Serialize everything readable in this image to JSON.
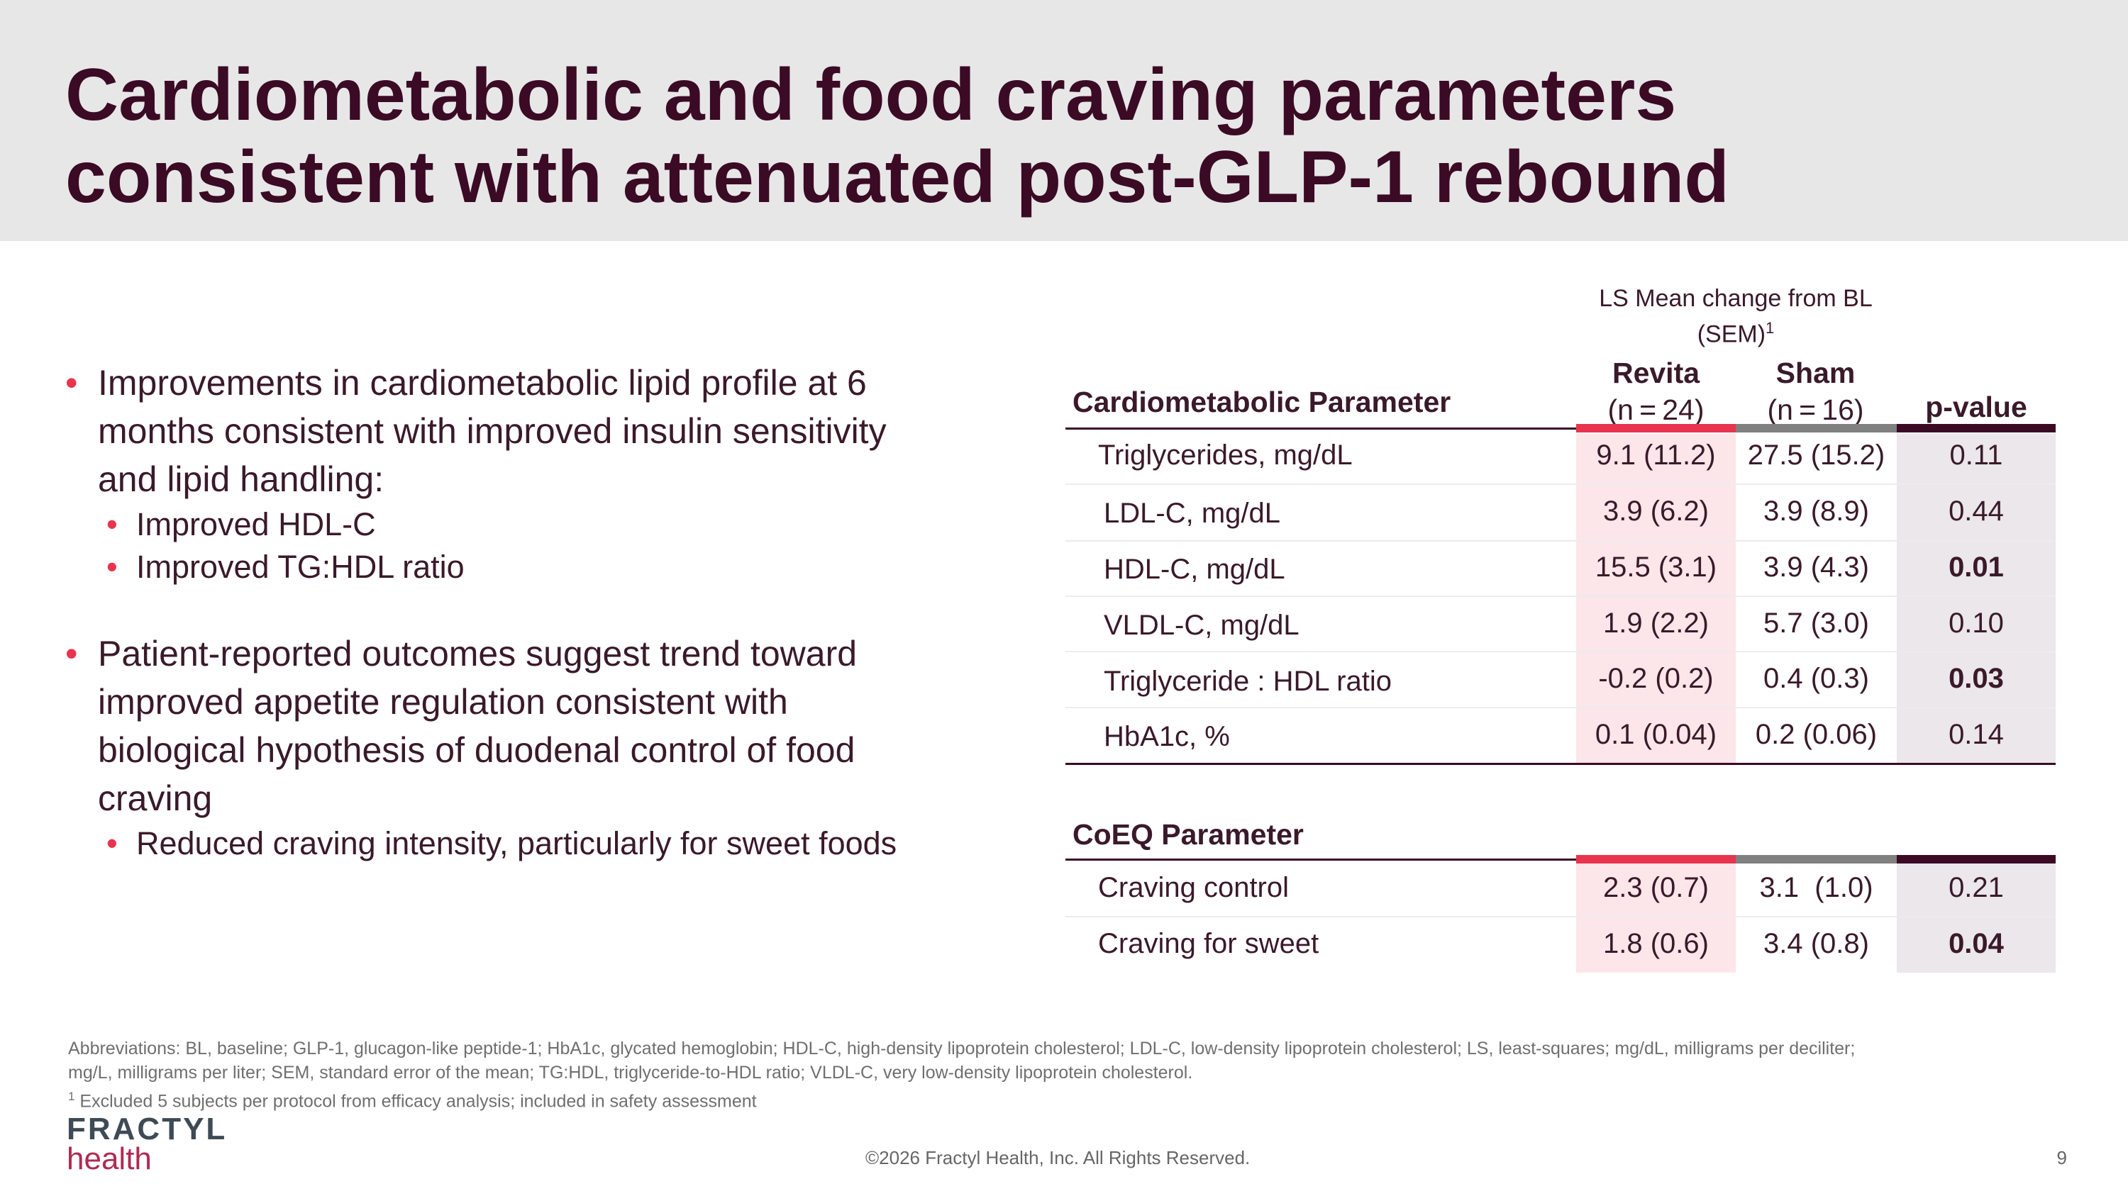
{
  "title_line1": "Cardiometabolic and food craving parameters",
  "title_line2": "consistent with attenuated post-GLP-1 rebound",
  "bullets": {
    "b1_l1": "Improvements in cardiometabolic lipid profile at 6",
    "b1_l2": "months consistent with improved insulin sensitivity",
    "b1_l3": "and lipid handling:",
    "b1_sub1": "Improved HDL-C",
    "b1_sub2": "Improved TG:HDL ratio",
    "b2_l1": "Patient-reported outcomes suggest trend toward",
    "b2_l2": "improved appetite regulation consistent with",
    "b2_l3": "biological hypothesis of duodenal control of food",
    "b2_l4": "craving",
    "b2_sub1": "Reduced craving intensity, particularly for sweet foods"
  },
  "table": {
    "group_header_l1": "LS Mean change from BL",
    "group_header_l2": "(SEM)",
    "group_header_sup": "1",
    "param_header": "Cardiometabolic Parameter",
    "revita_label": "Revita",
    "revita_n": "(n = 24)",
    "sham_label": "Sham",
    "sham_n": "(n = 16)",
    "pvalue_header": "p-value",
    "colors": {
      "revita": "#e8344e",
      "sham": "#808080",
      "pvalue": "#3b0a24",
      "revita_shade": "#fce6e9",
      "pvalue_shade": "#ebe7ea"
    },
    "rows": [
      {
        "param": "Triglycerides, mg/dL",
        "revita": "9.1 (11.2)",
        "sham": "27.5 (15.2)",
        "p": "0.11",
        "bold": false
      },
      {
        "param": "LDL-C, mg/dL",
        "revita": "3.9 (6.2)",
        "sham": "3.9 (8.9)",
        "p": "0.44",
        "bold": false
      },
      {
        "param": "HDL-C, mg/dL",
        "revita": "15.5 (3.1)",
        "sham": "3.9 (4.3)",
        "p": "0.01",
        "bold": true
      },
      {
        "param": "VLDL-C, mg/dL",
        "revita": "1.9 (2.2)",
        "sham": "5.7 (3.0)",
        "p": "0.10",
        "bold": false
      },
      {
        "param": "Triglyceride : HDL ratio",
        "revita": "-0.2 (0.2)",
        "sham": "0.4 (0.3)",
        "p": "0.03",
        "bold": true
      },
      {
        "param": "HbA1c, %",
        "revita": "0.1 (0.04)",
        "sham": "0.2 (0.06)",
        "p": "0.14",
        "bold": false
      }
    ],
    "coeq_header": "CoEQ Parameter",
    "coeq_rows": [
      {
        "param": "Craving control",
        "revita": "2.3 (0.7)",
        "sham": "3.1  (1.0)",
        "p": "0.21",
        "bold": false
      },
      {
        "param": "Craving for sweet",
        "revita": "1.8 (0.6)",
        "sham": "3.4 (0.8)",
        "p": "0.04",
        "bold": true
      }
    ]
  },
  "footnotes": {
    "abbrev_l1": "Abbreviations: BL, baseline; GLP-1, glucagon-like peptide-1;  HbA1c, glycated hemoglobin; HDL-C, high-density lipoprotein cholesterol; LDL-C, low-density lipoprotein cholesterol; LS, least-squares; mg/dL, milligrams per deciliter;",
    "abbrev_l2": "mg/L, milligrams per liter; SEM, standard error of the mean; TG:HDL, triglyceride-to-HDL ratio; VLDL-C, very low-density lipoprotein cholesterol.",
    "note_sup": "1",
    "note_text": " Excluded 5 subjects per protocol from efficacy analysis; included in safety assessment"
  },
  "logo": {
    "line1": "FRACTYL",
    "line2": "health"
  },
  "copyright": "©2026 Fractyl Health, Inc. All Rights Reserved.",
  "page_number": "9"
}
